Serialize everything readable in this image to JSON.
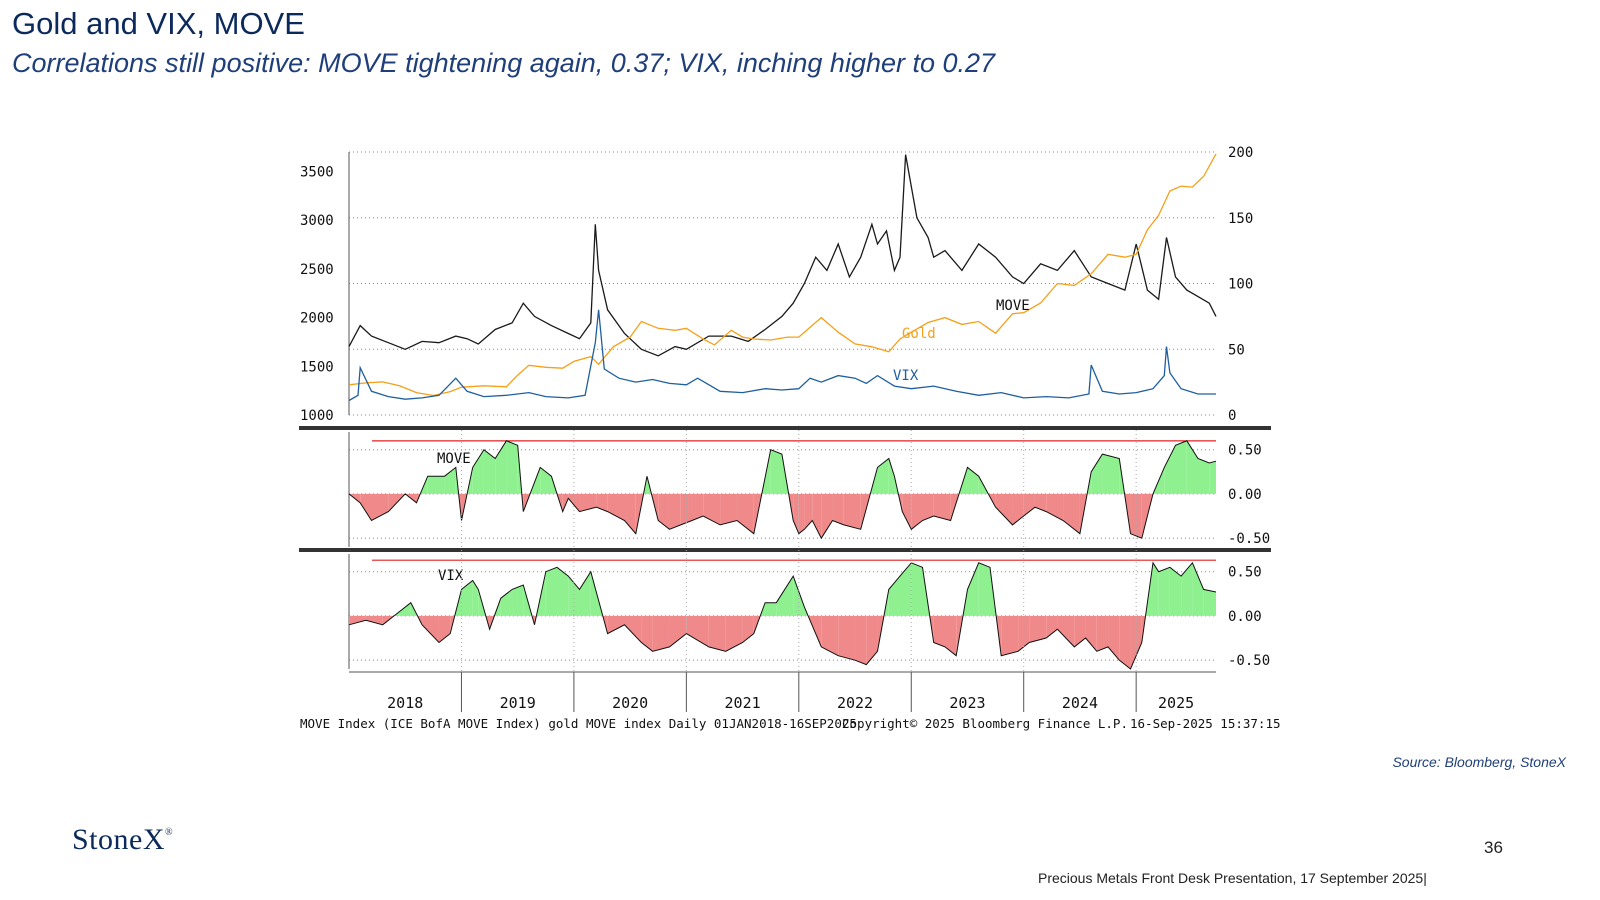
{
  "header": {
    "title": "Gold and VIX, MOVE",
    "subtitle": "Correlations still positive:  MOVE tightening again, 0.37; VIX, inching higher to 0.27"
  },
  "source": "Source: Bloomberg, StoneX",
  "logo": "StoneX",
  "logo_mark": "®",
  "page_number": "36",
  "footer": "Precious Metals Front Desk Presentation, 17 September 2025|",
  "colors": {
    "gold": "#f5a01a",
    "move": "#1a1a1a",
    "vix": "#1f5fa0",
    "positive_fill": "#8ef08e",
    "negative_fill": "#f08a8a",
    "threshold": "#e02020",
    "title": "#0b2a5b"
  },
  "chart_data": [
    {
      "type": "line",
      "panel": "price",
      "left_axis": {
        "ticks": [
          1000,
          1500,
          2000,
          2500,
          3000,
          3500
        ],
        "range": [
          1000,
          3700
        ]
      },
      "right_axis": {
        "ticks": [
          0,
          50,
          100,
          150,
          200
        ],
        "range": [
          0,
          200
        ]
      },
      "x_ticks": [
        "2018",
        "2019",
        "2020",
        "2021",
        "2022",
        "2023",
        "2024",
        "2025"
      ],
      "x_range": [
        2018.0,
        2025.71
      ],
      "series": [
        {
          "name": "Gold",
          "axis": "left",
          "x": [
            2018.0,
            2018.15,
            2018.3,
            2018.45,
            2018.6,
            2018.75,
            2018.9,
            2019.0,
            2019.2,
            2019.4,
            2019.5,
            2019.6,
            2019.75,
            2019.9,
            2020.0,
            2020.15,
            2020.22,
            2020.35,
            2020.5,
            2020.6,
            2020.75,
            2020.9,
            2021.0,
            2021.15,
            2021.25,
            2021.4,
            2021.5,
            2021.6,
            2021.75,
            2021.9,
            2022.0,
            2022.1,
            2022.2,
            2022.35,
            2022.5,
            2022.65,
            2022.8,
            2022.9,
            2023.0,
            2023.15,
            2023.3,
            2023.45,
            2023.6,
            2023.75,
            2023.9,
            2024.0,
            2024.15,
            2024.3,
            2024.45,
            2024.6,
            2024.75,
            2024.9,
            2025.0,
            2025.1,
            2025.2,
            2025.3,
            2025.4,
            2025.5,
            2025.6,
            2025.71
          ],
          "y": [
            1310,
            1330,
            1340,
            1300,
            1230,
            1200,
            1240,
            1285,
            1300,
            1290,
            1410,
            1510,
            1490,
            1480,
            1550,
            1600,
            1520,
            1700,
            1800,
            1960,
            1890,
            1870,
            1890,
            1780,
            1720,
            1870,
            1800,
            1780,
            1770,
            1800,
            1800,
            1900,
            2000,
            1850,
            1730,
            1700,
            1650,
            1780,
            1850,
            1950,
            2000,
            1930,
            1960,
            1840,
            2040,
            2050,
            2150,
            2350,
            2330,
            2450,
            2650,
            2620,
            2650,
            2900,
            3050,
            3300,
            3350,
            3340,
            3450,
            3680
          ]
        },
        {
          "name": "MOVE",
          "axis": "right",
          "x": [
            2018.0,
            2018.1,
            2018.2,
            2018.35,
            2018.5,
            2018.65,
            2018.8,
            2018.95,
            2019.05,
            2019.15,
            2019.3,
            2019.45,
            2019.55,
            2019.65,
            2019.8,
            2019.95,
            2020.05,
            2020.15,
            2020.19,
            2020.22,
            2020.3,
            2020.45,
            2020.6,
            2020.75,
            2020.9,
            2021.0,
            2021.2,
            2021.4,
            2021.55,
            2021.7,
            2021.85,
            2021.95,
            2022.05,
            2022.15,
            2022.25,
            2022.35,
            2022.45,
            2022.55,
            2022.65,
            2022.7,
            2022.78,
            2022.85,
            2022.9,
            2022.95,
            2023.05,
            2023.15,
            2023.2,
            2023.3,
            2023.45,
            2023.6,
            2023.75,
            2023.9,
            2024.0,
            2024.15,
            2024.3,
            2024.45,
            2024.6,
            2024.75,
            2024.9,
            2025.0,
            2025.1,
            2025.2,
            2025.27,
            2025.35,
            2025.45,
            2025.55,
            2025.65,
            2025.71
          ],
          "y": [
            52,
            68,
            60,
            55,
            50,
            56,
            55,
            60,
            58,
            54,
            65,
            70,
            85,
            75,
            68,
            62,
            58,
            70,
            145,
            110,
            80,
            62,
            50,
            45,
            52,
            50,
            60,
            60,
            56,
            65,
            75,
            85,
            100,
            120,
            110,
            130,
            105,
            120,
            145,
            130,
            140,
            110,
            120,
            198,
            150,
            135,
            120,
            125,
            110,
            130,
            120,
            105,
            100,
            115,
            110,
            125,
            105,
            100,
            95,
            130,
            95,
            88,
            135,
            105,
            95,
            90,
            85,
            75
          ]
        },
        {
          "name": "VIX",
          "axis": "right",
          "x": [
            2018.0,
            2018.08,
            2018.1,
            2018.2,
            2018.35,
            2018.5,
            2018.65,
            2018.8,
            2018.95,
            2019.05,
            2019.2,
            2019.4,
            2019.6,
            2019.75,
            2019.95,
            2020.1,
            2020.19,
            2020.22,
            2020.27,
            2020.4,
            2020.55,
            2020.7,
            2020.85,
            2021.0,
            2021.1,
            2021.3,
            2021.5,
            2021.7,
            2021.85,
            2022.0,
            2022.1,
            2022.2,
            2022.35,
            2022.5,
            2022.6,
            2022.7,
            2022.85,
            2023.0,
            2023.2,
            2023.4,
            2023.6,
            2023.8,
            2024.0,
            2024.2,
            2024.4,
            2024.58,
            2024.6,
            2024.7,
            2024.85,
            2025.0,
            2025.15,
            2025.25,
            2025.27,
            2025.3,
            2025.4,
            2025.55,
            2025.71
          ],
          "y": [
            11,
            15,
            36,
            18,
            14,
            12,
            13,
            15,
            28,
            18,
            14,
            15,
            17,
            14,
            13,
            15,
            55,
            80,
            35,
            28,
            25,
            27,
            24,
            23,
            28,
            18,
            17,
            20,
            19,
            20,
            28,
            25,
            30,
            28,
            24,
            30,
            22,
            20,
            22,
            18,
            15,
            17,
            13,
            14,
            13,
            16,
            38,
            18,
            16,
            17,
            20,
            30,
            52,
            32,
            20,
            16,
            16
          ]
        }
      ],
      "labels": [
        "MOVE",
        "Gold",
        "VIX"
      ]
    },
    {
      "type": "area",
      "panel": "correlation",
      "label": "MOVE",
      "y_ticks": [
        "0.50",
        "0.00",
        "-0.50"
      ],
      "ylim": [
        -0.6,
        0.7
      ],
      "threshold": 0.6,
      "x": [
        2018.0,
        2018.1,
        2018.2,
        2018.35,
        2018.5,
        2018.6,
        2018.7,
        2018.85,
        2018.95,
        2019.0,
        2019.1,
        2019.2,
        2019.3,
        2019.4,
        2019.5,
        2019.55,
        2019.7,
        2019.8,
        2019.9,
        2019.95,
        2020.05,
        2020.2,
        2020.3,
        2020.45,
        2020.55,
        2020.65,
        2020.75,
        2020.85,
        2020.95,
        2021.05,
        2021.15,
        2021.3,
        2021.45,
        2021.6,
        2021.75,
        2021.85,
        2021.95,
        2022.0,
        2022.05,
        2022.12,
        2022.2,
        2022.3,
        2022.4,
        2022.55,
        2022.7,
        2022.8,
        2022.85,
        2022.92,
        2023.0,
        2023.1,
        2023.2,
        2023.35,
        2023.5,
        2023.6,
        2023.75,
        2023.9,
        2024.0,
        2024.1,
        2024.2,
        2024.35,
        2024.5,
        2024.6,
        2024.7,
        2024.85,
        2024.95,
        2025.05,
        2025.15,
        2025.25,
        2025.35,
        2025.45,
        2025.55,
        2025.65,
        2025.71
      ],
      "values": [
        0.0,
        -0.1,
        -0.3,
        -0.2,
        0.0,
        -0.1,
        0.2,
        0.2,
        0.3,
        -0.3,
        0.3,
        0.5,
        0.4,
        0.6,
        0.55,
        -0.2,
        0.3,
        0.2,
        -0.2,
        -0.05,
        -0.2,
        -0.15,
        -0.2,
        -0.3,
        -0.45,
        0.2,
        -0.3,
        -0.4,
        -0.35,
        -0.3,
        -0.25,
        -0.35,
        -0.3,
        -0.45,
        0.5,
        0.45,
        -0.3,
        -0.45,
        -0.4,
        -0.3,
        -0.5,
        -0.3,
        -0.35,
        -0.4,
        0.3,
        0.4,
        0.2,
        -0.2,
        -0.4,
        -0.3,
        -0.25,
        -0.3,
        0.3,
        0.2,
        -0.15,
        -0.35,
        -0.25,
        -0.15,
        -0.2,
        -0.3,
        -0.45,
        0.25,
        0.45,
        0.4,
        -0.45,
        -0.5,
        0.0,
        0.3,
        0.55,
        0.6,
        0.4,
        0.35,
        0.37
      ]
    },
    {
      "type": "area",
      "panel": "correlation",
      "label": "VIX",
      "y_ticks": [
        "0.50",
        "0.00",
        "-0.50"
      ],
      "ylim": [
        -0.6,
        0.7
      ],
      "threshold": 0.63,
      "x": [
        2018.0,
        2018.15,
        2018.3,
        2018.45,
        2018.55,
        2018.65,
        2018.8,
        2018.9,
        2019.0,
        2019.1,
        2019.15,
        2019.25,
        2019.35,
        2019.45,
        2019.55,
        2019.65,
        2019.75,
        2019.85,
        2019.95,
        2020.05,
        2020.15,
        2020.3,
        2020.45,
        2020.6,
        2020.7,
        2020.85,
        2021.0,
        2021.2,
        2021.35,
        2021.5,
        2021.6,
        2021.7,
        2021.8,
        2021.95,
        2022.05,
        2022.2,
        2022.35,
        2022.5,
        2022.6,
        2022.7,
        2022.8,
        2022.9,
        2023.0,
        2023.1,
        2023.2,
        2023.3,
        2023.4,
        2023.5,
        2023.6,
        2023.7,
        2023.8,
        2023.95,
        2024.05,
        2024.2,
        2024.3,
        2024.45,
        2024.55,
        2024.65,
        2024.75,
        2024.85,
        2024.95,
        2025.05,
        2025.15,
        2025.2,
        2025.3,
        2025.4,
        2025.5,
        2025.6,
        2025.71
      ],
      "values": [
        -0.1,
        -0.05,
        -0.1,
        0.05,
        0.15,
        -0.1,
        -0.3,
        -0.2,
        0.3,
        0.4,
        0.3,
        -0.15,
        0.2,
        0.3,
        0.35,
        -0.1,
        0.5,
        0.55,
        0.45,
        0.3,
        0.5,
        -0.2,
        -0.1,
        -0.3,
        -0.4,
        -0.35,
        -0.2,
        -0.35,
        -0.4,
        -0.3,
        -0.2,
        0.15,
        0.15,
        0.45,
        0.1,
        -0.35,
        -0.45,
        -0.5,
        -0.55,
        -0.4,
        0.3,
        0.45,
        0.6,
        0.55,
        -0.3,
        -0.35,
        -0.45,
        0.3,
        0.6,
        0.55,
        -0.45,
        -0.4,
        -0.3,
        -0.25,
        -0.15,
        -0.35,
        -0.25,
        -0.4,
        -0.35,
        -0.5,
        -0.6,
        -0.3,
        0.6,
        0.5,
        0.55,
        0.45,
        0.6,
        0.3,
        0.27
      ]
    }
  ],
  "chart_footer": {
    "left": "MOVE Index (ICE BofA MOVE Index) gold MOVE index  Daily 01JAN2018-16SEP2025",
    "copyright": "Copyright© 2025 Bloomberg Finance L.P.",
    "timestamp": "16-Sep-2025 15:37:15"
  }
}
